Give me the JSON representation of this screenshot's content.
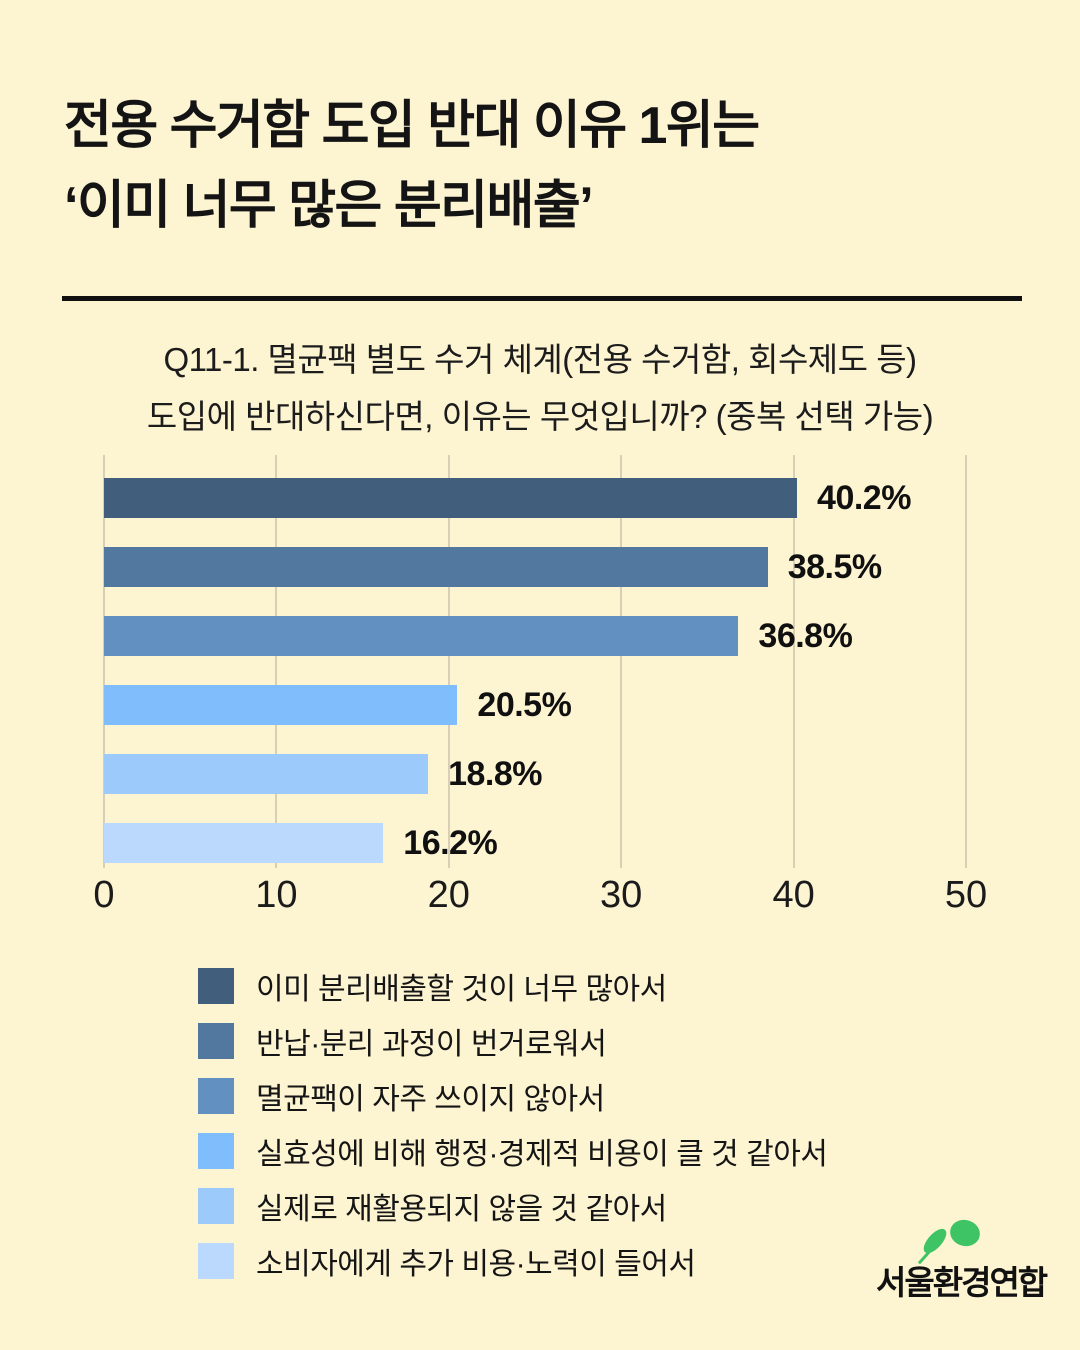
{
  "page": {
    "background": "#FDF4D2"
  },
  "title": {
    "line1": "전용 수거함 도입 반대 이유 1위는",
    "line2": "‘이미 너무 많은 분리배출’"
  },
  "subtitle": {
    "line1": "Q11-1. 멸균팩 별도 수거 체계(전용 수거함, 회수제도 등)",
    "line2": "도입에 반대하신다면, 이유는 무엇입니까? (중복 선택 가능)"
  },
  "chart_data": {
    "type": "bar",
    "orientation": "horizontal",
    "title": "",
    "xlabel": "",
    "ylabel": "",
    "categories": [
      "이미 분리배출할 것이 너무 많아서",
      "반납·분리 과정이 번거로워서",
      "멸균팩이 자주 쓰이지 않아서",
      "실효성에 비해 행정·경제적 비용이 클 것 같아서",
      "실제로 재활용되지 않을 것 같아서",
      "소비자에게 추가 비용·노력이 들어서"
    ],
    "values": [
      40.2,
      38.5,
      36.8,
      20.5,
      18.8,
      16.2
    ],
    "value_labels": [
      "40.2%",
      "38.5%",
      "36.8%",
      "20.5%",
      "18.8%",
      "16.2%"
    ],
    "bar_colors": [
      "#415F7D",
      "#52789F",
      "#6290C1",
      "#7FBDFC",
      "#9CCAFB",
      "#BAD9FC"
    ],
    "xlim": [
      0,
      50
    ],
    "x_ticks": [
      "0",
      "10",
      "20",
      "30",
      "40",
      "50"
    ],
    "grid": true,
    "gridline_color": "#D8CFB6",
    "legend_position": "bottom"
  },
  "logo": {
    "text": "서울환경연합",
    "leaf_color": "#3EC464"
  }
}
